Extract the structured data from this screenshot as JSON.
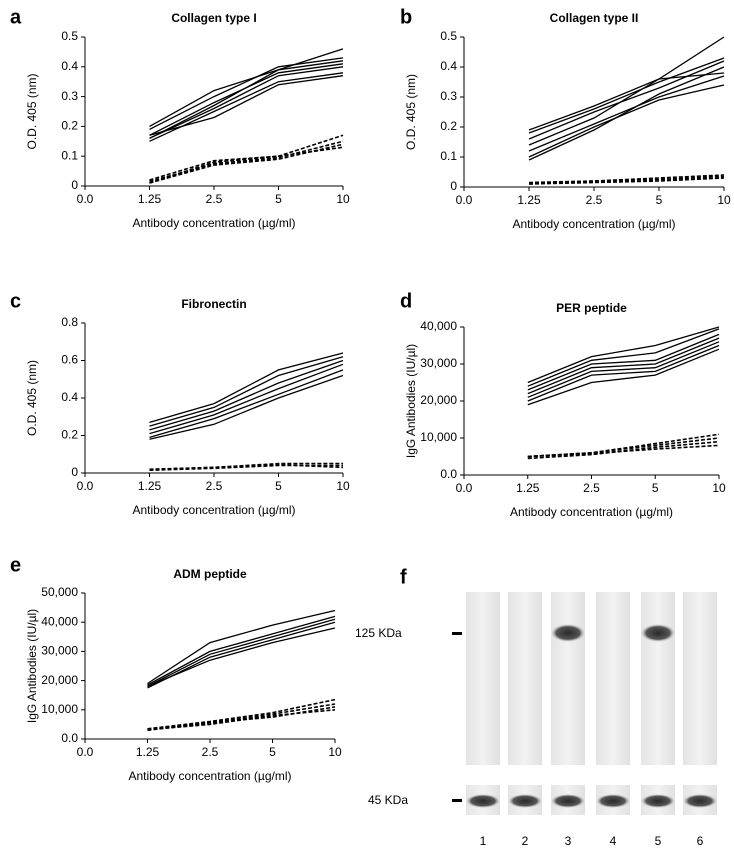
{
  "chart_data": [
    {
      "type": "line",
      "panel_label": "a",
      "title": "Collagen type I",
      "x_label": "Antibody concentration (µg/ml)",
      "y_label": "O.D. 405 (nm)",
      "categories": [
        "0.0",
        "1.25",
        "2.5",
        "5",
        "10"
      ],
      "ylim": [
        0,
        0.5
      ],
      "yticks": [
        0,
        0.1,
        0.2,
        0.3,
        0.4,
        0.5
      ],
      "series": [
        {
          "color": "#000",
          "style": "solid",
          "values": [
            null,
            0.2,
            0.32,
            0.39,
            0.46
          ]
        },
        {
          "color": "#000",
          "style": "solid",
          "values": [
            null,
            0.19,
            0.3,
            0.4,
            0.43
          ]
        },
        {
          "color": "#000",
          "style": "solid",
          "values": [
            null,
            0.17,
            0.28,
            0.38,
            0.41
          ]
        },
        {
          "color": "#000",
          "style": "solid",
          "values": [
            null,
            0.16,
            0.26,
            0.37,
            0.4
          ]
        },
        {
          "color": "#000",
          "style": "solid",
          "values": [
            null,
            0.15,
            0.25,
            0.35,
            0.38
          ]
        },
        {
          "color": "#000",
          "style": "solid",
          "values": [
            null,
            0.17,
            0.23,
            0.34,
            0.37
          ]
        },
        {
          "color": "#000",
          "style": "solid",
          "values": [
            null,
            0.16,
            0.27,
            0.39,
            0.42
          ]
        },
        {
          "color": "#000",
          "style": "dashed",
          "values": [
            null,
            0.01,
            0.08,
            0.1,
            0.17
          ]
        },
        {
          "color": "#000",
          "style": "dashed",
          "values": [
            null,
            0.015,
            0.075,
            0.095,
            0.15
          ]
        },
        {
          "color": "#000",
          "style": "dashed",
          "values": [
            null,
            0.01,
            0.07,
            0.09,
            0.14
          ]
        },
        {
          "color": "#000",
          "style": "dashed",
          "values": [
            null,
            0.02,
            0.085,
            0.1,
            0.13
          ]
        }
      ]
    },
    {
      "type": "line",
      "panel_label": "b",
      "title": "Collagen type II",
      "x_label": "Antibody concentration (µg/ml)",
      "y_label": "O.D. 405 (nm)",
      "categories": [
        "0.0",
        "1.25",
        "2.5",
        "5",
        "10"
      ],
      "ylim": [
        0,
        0.5
      ],
      "yticks": [
        0,
        0.1,
        0.2,
        0.3,
        0.4,
        0.5
      ],
      "series": [
        {
          "color": "#000",
          "style": "solid",
          "values": [
            null,
            0.19,
            0.27,
            0.36,
            0.5
          ]
        },
        {
          "color": "#000",
          "style": "solid",
          "values": [
            null,
            0.18,
            0.26,
            0.35,
            0.43
          ]
        },
        {
          "color": "#000",
          "style": "solid",
          "values": [
            null,
            0.16,
            0.25,
            0.33,
            0.42
          ]
        },
        {
          "color": "#000",
          "style": "solid",
          "values": [
            null,
            0.14,
            0.23,
            0.36,
            0.38
          ]
        },
        {
          "color": "#000",
          "style": "solid",
          "values": [
            null,
            0.12,
            0.21,
            0.3,
            0.37
          ]
        },
        {
          "color": "#000",
          "style": "solid",
          "values": [
            null,
            0.1,
            0.2,
            0.29,
            0.34
          ]
        },
        {
          "color": "#000",
          "style": "solid",
          "values": [
            null,
            0.09,
            0.19,
            0.31,
            0.4
          ]
        },
        {
          "color": "#000",
          "style": "dashed",
          "values": [
            null,
            0.01,
            0.02,
            0.03,
            0.04
          ]
        },
        {
          "color": "#000",
          "style": "dashed",
          "values": [
            null,
            0.015,
            0.02,
            0.025,
            0.035
          ]
        },
        {
          "color": "#000",
          "style": "dashed",
          "values": [
            null,
            0.01,
            0.015,
            0.02,
            0.03
          ]
        }
      ]
    },
    {
      "type": "line",
      "panel_label": "c",
      "title": "Fibronectin",
      "x_label": "Antibody concentration (µg/ml)",
      "y_label": "O.D. 405 (nm)",
      "categories": [
        "0.0",
        "1.25",
        "2.5",
        "5",
        "10"
      ],
      "ylim": [
        0,
        0.8
      ],
      "yticks": [
        0,
        0.2,
        0.4,
        0.6,
        0.8
      ],
      "series": [
        {
          "color": "#000",
          "style": "solid",
          "values": [
            null,
            0.27,
            0.37,
            0.55,
            0.64
          ]
        },
        {
          "color": "#000",
          "style": "solid",
          "values": [
            null,
            0.25,
            0.35,
            0.52,
            0.62
          ]
        },
        {
          "color": "#000",
          "style": "solid",
          "values": [
            null,
            0.23,
            0.33,
            0.48,
            0.6
          ]
        },
        {
          "color": "#000",
          "style": "solid",
          "values": [
            null,
            0.21,
            0.31,
            0.45,
            0.58
          ]
        },
        {
          "color": "#000",
          "style": "solid",
          "values": [
            null,
            0.19,
            0.29,
            0.42,
            0.55
          ]
        },
        {
          "color": "#000",
          "style": "solid",
          "values": [
            null,
            0.18,
            0.26,
            0.4,
            0.52
          ]
        },
        {
          "color": "#000",
          "style": "dashed",
          "values": [
            null,
            0.02,
            0.03,
            0.05,
            0.05
          ]
        },
        {
          "color": "#000",
          "style": "dashed",
          "values": [
            null,
            0.015,
            0.025,
            0.04,
            0.04
          ]
        },
        {
          "color": "#000",
          "style": "dashed",
          "values": [
            null,
            0.02,
            0.03,
            0.045,
            0.03
          ]
        }
      ]
    },
    {
      "type": "line",
      "panel_label": "d",
      "title": "PER peptide",
      "x_label": "Antibody concentration (µg/ml)",
      "y_label": "IgG Antibodies (IU/µl)",
      "categories": [
        "0.0",
        "1.25",
        "2.5",
        "5",
        "10"
      ],
      "ylim": [
        0,
        40000
      ],
      "yticks": [
        {
          "value": 0,
          "label": "0.0"
        },
        {
          "value": 10000,
          "label": "10,000"
        },
        {
          "value": 20000,
          "label": "20,000"
        },
        {
          "value": 30000,
          "label": "30,000"
        },
        {
          "value": 40000,
          "label": "40,000"
        }
      ],
      "series": [
        {
          "color": "#000",
          "style": "solid",
          "values": [
            null,
            25000,
            32000,
            35000,
            40000
          ]
        },
        {
          "color": "#000",
          "style": "solid",
          "values": [
            null,
            24000,
            31000,
            33000,
            39500
          ]
        },
        {
          "color": "#000",
          "style": "solid",
          "values": [
            null,
            23000,
            30000,
            31000,
            38000
          ]
        },
        {
          "color": "#000",
          "style": "solid",
          "values": [
            null,
            22000,
            29000,
            30000,
            37000
          ]
        },
        {
          "color": "#000",
          "style": "solid",
          "values": [
            null,
            21000,
            28000,
            29000,
            36000
          ]
        },
        {
          "color": "#000",
          "style": "solid",
          "values": [
            null,
            20000,
            27000,
            28000,
            35000
          ]
        },
        {
          "color": "#000",
          "style": "solid",
          "values": [
            null,
            19000,
            25000,
            27000,
            34000
          ]
        },
        {
          "color": "#000",
          "style": "dashed",
          "values": [
            null,
            5000,
            6000,
            8500,
            11000
          ]
        },
        {
          "color": "#000",
          "style": "dashed",
          "values": [
            null,
            5000,
            6000,
            8000,
            10000
          ]
        },
        {
          "color": "#000",
          "style": "dashed",
          "values": [
            null,
            4500,
            5500,
            7500,
            9000
          ]
        },
        {
          "color": "#000",
          "style": "dashed",
          "values": [
            null,
            5000,
            5800,
            7000,
            8000
          ]
        }
      ]
    },
    {
      "type": "line",
      "panel_label": "e",
      "title": "ADM peptide",
      "x_label": "Antibody concentration (µg/ml)",
      "y_label": "IgG Antibodies (IU/µl)",
      "categories": [
        "0.0",
        "1.25",
        "2.5",
        "5",
        "10"
      ],
      "ylim": [
        0,
        50000
      ],
      "yticks": [
        {
          "value": 0,
          "label": "0.0"
        },
        {
          "value": 10000,
          "label": "10,000"
        },
        {
          "value": 20000,
          "label": "20,000"
        },
        {
          "value": 30000,
          "label": "30,000"
        },
        {
          "value": 40000,
          "label": "40,000"
        },
        {
          "value": 50000,
          "label": "50,000"
        }
      ],
      "series": [
        {
          "color": "#000",
          "style": "solid",
          "values": [
            null,
            19000,
            33000,
            39000,
            44000
          ]
        },
        {
          "color": "#000",
          "style": "solid",
          "values": [
            null,
            18500,
            30000,
            36000,
            42000
          ]
        },
        {
          "color": "#000",
          "style": "solid",
          "values": [
            null,
            18000,
            29000,
            35000,
            41000
          ]
        },
        {
          "color": "#000",
          "style": "solid",
          "values": [
            null,
            17500,
            28000,
            34000,
            40000
          ]
        },
        {
          "color": "#000",
          "style": "solid",
          "values": [
            null,
            18000,
            27000,
            33000,
            38000
          ]
        },
        {
          "color": "#000",
          "style": "dashed",
          "values": [
            null,
            3500,
            6000,
            9000,
            13500
          ]
        },
        {
          "color": "#000",
          "style": "dashed",
          "values": [
            null,
            3000,
            5500,
            8500,
            12000
          ]
        },
        {
          "color": "#000",
          "style": "dashed",
          "values": [
            null,
            3200,
            5000,
            8000,
            10000
          ]
        },
        {
          "color": "#000",
          "style": "dashed",
          "values": [
            null,
            3000,
            5600,
            7500,
            11000
          ]
        }
      ]
    }
  ],
  "blot": {
    "panel_label": "f",
    "markers": [
      "125 KDa",
      "45 KDa"
    ],
    "lanes": [
      "1",
      "2",
      "3",
      "4",
      "5",
      "6"
    ]
  }
}
